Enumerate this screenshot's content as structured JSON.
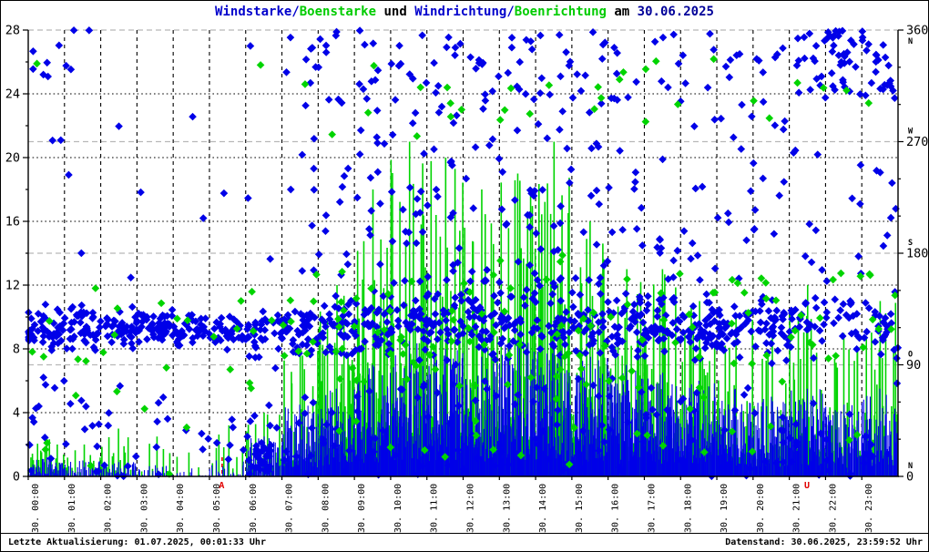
{
  "title": {
    "segments": [
      {
        "text": "Windstarke/",
        "color": "#0000cc"
      },
      {
        "text": "Boenstarke",
        "color": "#00cc00"
      },
      {
        "text": " und ",
        "color": "#000000"
      },
      {
        "text": "Windrichtung/",
        "color": "#0000cc"
      },
      {
        "text": "Boenrichtung",
        "color": "#00cc00"
      },
      {
        "text": " am ",
        "color": "#000000"
      },
      {
        "text": "30.06.2025",
        "color": "#000099"
      }
    ]
  },
  "footer": {
    "left": "Letzte Aktualisierung: 01.07.2025, 00:01:33 Uhr",
    "right": "Datenstand: 30.06.2025, 23:59:52 Uhr"
  },
  "chart_data": {
    "type": "scatter",
    "subtype": "wind speed impulses + wind direction scatter, minute data for one day",
    "date": "30.06.2025",
    "x_axis": {
      "range_hours": [
        0,
        24
      ],
      "gridline_every_hours": 1,
      "tick_labels": [
        "30. 00:00",
        "30. 01:00",
        "30. 02:00",
        "30. 03:00",
        "30. 04:00",
        "30. 05:00",
        "30. 06:00",
        "30. 07:00",
        "30. 08:00",
        "30. 09:00",
        "30. 10:00",
        "30. 11:00",
        "30. 12:00",
        "30. 13:00",
        "30. 14:00",
        "30. 15:00",
        "30. 16:00",
        "30. 17:00",
        "30. 18:00",
        "30. 19:00",
        "30. 20:00",
        "30. 21:00",
        "30. 22:00",
        "30. 23:00"
      ]
    },
    "y_left": {
      "range": [
        0,
        28
      ],
      "major_ticks": [
        0,
        4,
        8,
        12,
        16,
        20,
        24,
        28
      ],
      "minor_step": 2,
      "applies_to": "Windstarke / Boenstarke"
    },
    "y_right": {
      "range": [
        0,
        360
      ],
      "major_ticks": [
        0,
        90,
        180,
        270,
        360
      ],
      "minor_step": 30,
      "compass": [
        {
          "value": 0,
          "letter": "N"
        },
        {
          "value": 90,
          "letter": "O"
        },
        {
          "value": 180,
          "letter": "S"
        },
        {
          "value": 270,
          "letter": "W"
        },
        {
          "value": 360,
          "letter": "N"
        }
      ],
      "applies_to": "Windrichtung / Boenrichtung"
    },
    "sun_markers": [
      {
        "label": "A",
        "hour": 5.35
      },
      {
        "label": "U",
        "hour": 21.5
      }
    ],
    "colors": {
      "wind": "#0000e8",
      "gust": "#00d400",
      "grid_hour": "#000000",
      "grid_speed": "#000000",
      "grid_direction": "#b8b8b8",
      "sun_marker": "#e00000",
      "axis": "#000000"
    },
    "series": [
      {
        "name": "Windstarke",
        "style": "impulse",
        "color": "#0000e8",
        "hourly_max": [
          1.2,
          1.0,
          0.9,
          0.7,
          0.5,
          1.0,
          2.5,
          4.5,
          5.5,
          7.0,
          8.5,
          8.0,
          7.5,
          8.5,
          8.0,
          7.5,
          7.0,
          6.5,
          6.0,
          5.5,
          5.0,
          5.5,
          4.5,
          5.5
        ],
        "hourly_count": [
          40,
          25,
          25,
          15,
          8,
          15,
          35,
          55,
          60,
          60,
          60,
          60,
          60,
          60,
          60,
          60,
          60,
          60,
          58,
          56,
          55,
          55,
          50,
          55
        ]
      },
      {
        "name": "Boenstarke",
        "style": "impulse",
        "color": "#00d400",
        "hourly_max": [
          2.5,
          2.0,
          3.0,
          2.5,
          1.5,
          3.2,
          4.0,
          8.0,
          12.0,
          18.0,
          21.0,
          20.0,
          18.0,
          19.0,
          21.0,
          16.0,
          13.0,
          13.0,
          11.0,
          10.0,
          9.0,
          12.0,
          9.0,
          11.0
        ],
        "hourly_count": [
          25,
          12,
          15,
          8,
          3,
          8,
          20,
          30,
          36,
          40,
          40,
          40,
          40,
          40,
          38,
          38,
          36,
          35,
          32,
          30,
          28,
          30,
          25,
          28
        ]
      },
      {
        "name": "Windrichtung",
        "style": "diamond-scatter",
        "color": "#0000e8",
        "hourly_main_band_deg": [
          [
            95,
            140
          ],
          [
            95,
            140
          ],
          [
            100,
            138
          ],
          [
            102,
            138
          ],
          [
            103,
            135
          ],
          [
            100,
            135
          ],
          [
            85,
            135
          ],
          [
            90,
            148
          ],
          [
            90,
            152
          ],
          [
            90,
            158
          ],
          [
            90,
            162
          ],
          [
            88,
            162
          ],
          [
            88,
            160
          ],
          [
            86,
            165
          ],
          [
            86,
            165
          ],
          [
            88,
            162
          ],
          [
            90,
            158
          ],
          [
            92,
            152
          ],
          [
            90,
            150
          ],
          [
            90,
            146
          ],
          [
            88,
            148
          ],
          [
            90,
            150
          ],
          [
            95,
            152
          ],
          [
            90,
            150
          ]
        ],
        "hourly_band_count": [
          46,
          44,
          42,
          44,
          40,
          30,
          38,
          42,
          42,
          40,
          36,
          36,
          36,
          36,
          36,
          38,
          40,
          42,
          42,
          40,
          38,
          26,
          20,
          26
        ],
        "hourly_low_count": [
          12,
          10,
          8,
          6,
          4,
          6,
          12,
          10,
          8,
          8,
          8,
          8,
          8,
          8,
          8,
          8,
          8,
          8,
          7,
          7,
          8,
          8,
          6,
          8
        ],
        "hourly_mid_count": [
          2,
          2,
          1,
          1,
          1,
          1,
          2,
          8,
          10,
          12,
          14,
          14,
          12,
          14,
          13,
          12,
          10,
          10,
          8,
          8,
          8,
          8,
          6,
          7
        ],
        "hourly_high_count": [
          6,
          4,
          1,
          0,
          1,
          0,
          1,
          8,
          9,
          11,
          12,
          12,
          11,
          12,
          12,
          10,
          8,
          6,
          8,
          8,
          10,
          16,
          30,
          24
        ],
        "transition_cluster": {
          "hour_from": 6.25,
          "hour_to": 6.7,
          "deg_from": 4,
          "deg_to": 26,
          "count": 30
        }
      },
      {
        "name": "Boenrichtung",
        "style": "diamond-scatter",
        "color": "#00d400",
        "hourly_count": [
          6,
          5,
          4,
          4,
          3,
          4,
          6,
          10,
          12,
          12,
          12,
          12,
          12,
          12,
          12,
          12,
          11,
          10,
          10,
          9,
          9,
          8,
          8,
          8
        ]
      }
    ]
  }
}
